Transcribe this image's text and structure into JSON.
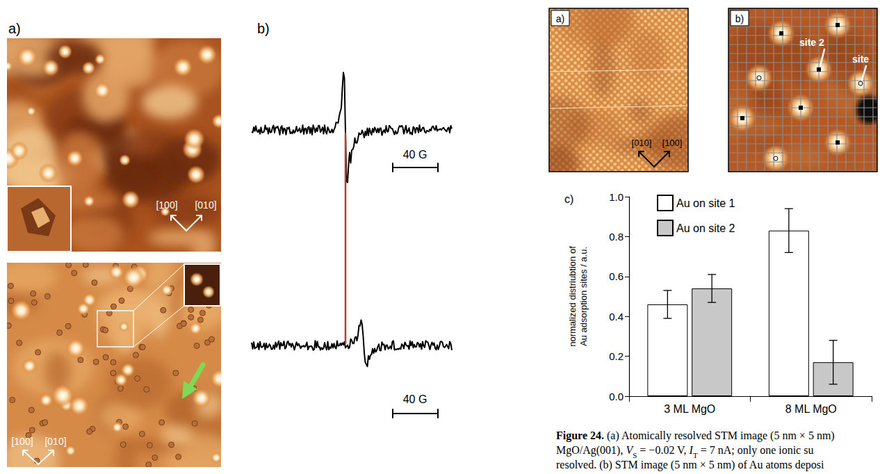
{
  "figure": {
    "left": {
      "letter": "a)",
      "top_image": {
        "directions": [
          "[100]",
          "[010]"
        ]
      },
      "bottom_image": {
        "directions": [
          "[100]",
          "[010]"
        ]
      }
    },
    "middle": {
      "letter": "b)",
      "scale_bars": [
        "40 G",
        "40 G"
      ]
    },
    "right": {
      "image_a": {
        "letter": "a)",
        "directions": [
          "[010]",
          "[100]"
        ]
      },
      "image_b": {
        "letter": "b)",
        "labels": [
          "site 2",
          "site"
        ]
      },
      "chart_letter": "c)"
    },
    "caption": {
      "lines": [
        [
          {
            "text": "Figure 24.",
            "style": "bold"
          },
          {
            "text": " (a) Atomically resolved STM image (5 nm × 5 nm)"
          }
        ],
        [
          {
            "text": "MgO/Ag(001), "
          },
          {
            "text": "V",
            "style": "italic"
          },
          {
            "text": "S",
            "style": "sub"
          },
          {
            "text": " = −0.02 V, "
          },
          {
            "text": "I",
            "style": "italic"
          },
          {
            "text": "T",
            "style": "sub"
          },
          {
            "text": " = 7 nA; only one ionic su"
          }
        ],
        [
          {
            "text": "resolved. (b) STM image (5 nm × 5 nm) of Au atoms deposi"
          }
        ]
      ]
    }
  },
  "chart_data": {
    "type": "bar",
    "ylabel": "normalized distriubtion of Au adsorption sites / a.u.",
    "categories": [
      "3 ML MgO",
      "8 ML MgO"
    ],
    "series": [
      {
        "name": "Au on site 1",
        "color": "#ffffff",
        "values": [
          0.46,
          0.83
        ],
        "error": [
          0.07,
          0.11
        ]
      },
      {
        "name": "Au on site 2",
        "color": "#c8c8c8",
        "values": [
          0.54,
          0.17
        ],
        "error": [
          0.07,
          0.11
        ]
      }
    ],
    "ylim": [
      0,
      1
    ],
    "yticks": [
      {
        "value": 0,
        "label": "0.0"
      },
      0.2,
      0.4,
      0.6,
      0.8,
      {
        "value": 1,
        "label": "1.0"
      }
    ],
    "legend": "upper left",
    "grid": false
  }
}
